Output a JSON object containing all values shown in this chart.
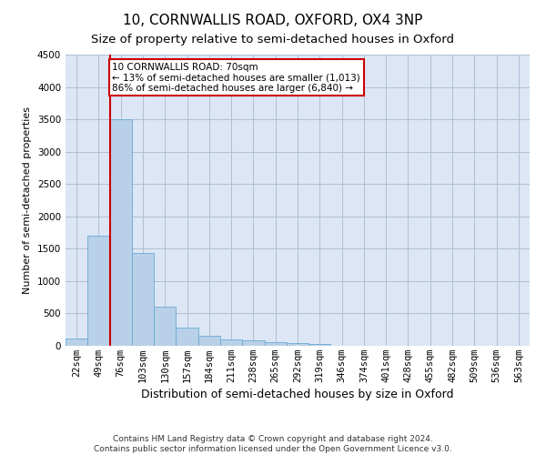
{
  "title": "10, CORNWALLIS ROAD, OXFORD, OX4 3NP",
  "subtitle": "Size of property relative to semi-detached houses in Oxford",
  "xlabel": "Distribution of semi-detached houses by size in Oxford",
  "ylabel": "Number of semi-detached properties",
  "bar_values": [
    110,
    1700,
    3500,
    1430,
    610,
    280,
    150,
    100,
    90,
    55,
    45,
    30,
    0,
    0,
    0,
    0,
    0,
    0,
    0,
    0,
    0
  ],
  "categories": [
    "22sqm",
    "49sqm",
    "76sqm",
    "103sqm",
    "130sqm",
    "157sqm",
    "184sqm",
    "211sqm",
    "238sqm",
    "265sqm",
    "292sqm",
    "319sqm",
    "346sqm",
    "374sqm",
    "401sqm",
    "428sqm",
    "455sqm",
    "482sqm",
    "509sqm",
    "536sqm",
    "563sqm"
  ],
  "bar_color": "#b8d0e8",
  "bar_edge_color": "#6aaad4",
  "plot_bg_color": "#dce6f5",
  "background_color": "#ffffff",
  "grid_color": "#b0bdd4",
  "property_line_x": 2,
  "annotation_text": "10 CORNWALLIS ROAD: 70sqm\n← 13% of semi-detached houses are smaller (1,013)\n86% of semi-detached houses are larger (6,840) →",
  "annotation_box_color": "#ffffff",
  "annotation_box_edge_color": "#cc0000",
  "red_line_color": "#cc0000",
  "ylim": [
    0,
    4500
  ],
  "yticks": [
    0,
    500,
    1000,
    1500,
    2000,
    2500,
    3000,
    3500,
    4000,
    4500
  ],
  "footnote": "Contains HM Land Registry data © Crown copyright and database right 2024.\nContains public sector information licensed under the Open Government Licence v3.0.",
  "title_fontsize": 11,
  "subtitle_fontsize": 9.5,
  "xlabel_fontsize": 9,
  "ylabel_fontsize": 8,
  "tick_fontsize": 7.5,
  "annotation_fontsize": 7.5,
  "footnote_fontsize": 6.5
}
